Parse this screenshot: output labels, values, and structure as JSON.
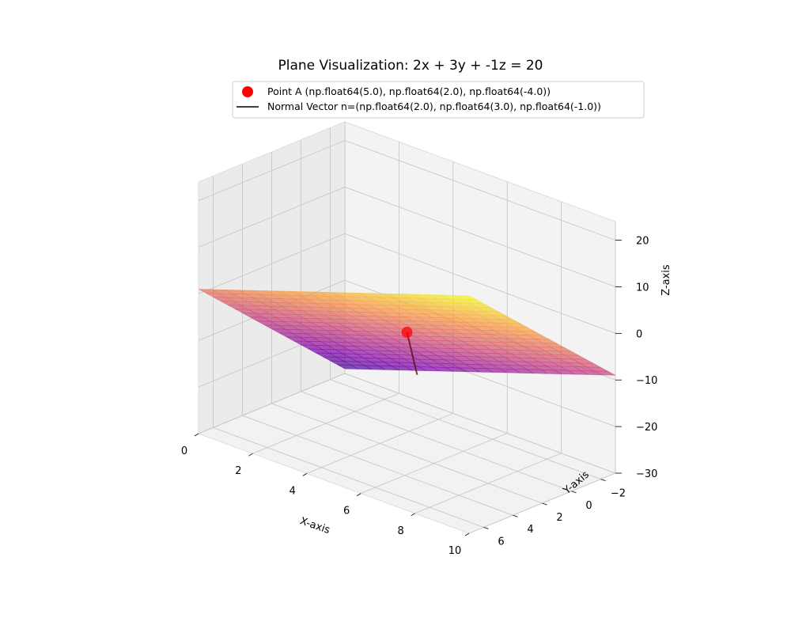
{
  "chart_data": {
    "type": "surface3d",
    "title": "Plane Visualization: 2x + 3y + -1z = 20",
    "plane": {
      "a": 2,
      "b": 3,
      "c": -1,
      "d": 20
    },
    "xlim": [
      0,
      10
    ],
    "ylim": [
      -3,
      7
    ],
    "zlim": [
      -30,
      24
    ],
    "xlabel": "X-axis",
    "ylabel": "Y-axis",
    "zlabel": "Z-axis",
    "xticks": [
      0,
      2,
      4,
      6,
      8,
      10
    ],
    "yticks": [
      -2,
      0,
      2,
      4,
      6
    ],
    "zticks": [
      20,
      10,
      0,
      -10,
      -20,
      -30
    ],
    "point": {
      "label": "Point A (np.float64(5.0), np.float64(2.0), np.float64(-4.0))",
      "x": 5.0,
      "y": 2.0,
      "z": -4.0,
      "color": "#ff0000"
    },
    "normal": {
      "label": "Normal Vector n=(np.float64(2.0), np.float64(3.0), np.float64(-1.0))",
      "x": 2.0,
      "y": 3.0,
      "z": -1.0,
      "color": "#000000"
    },
    "legend": {
      "position": "upper-center"
    },
    "colormap": "plasma",
    "grid": true
  }
}
